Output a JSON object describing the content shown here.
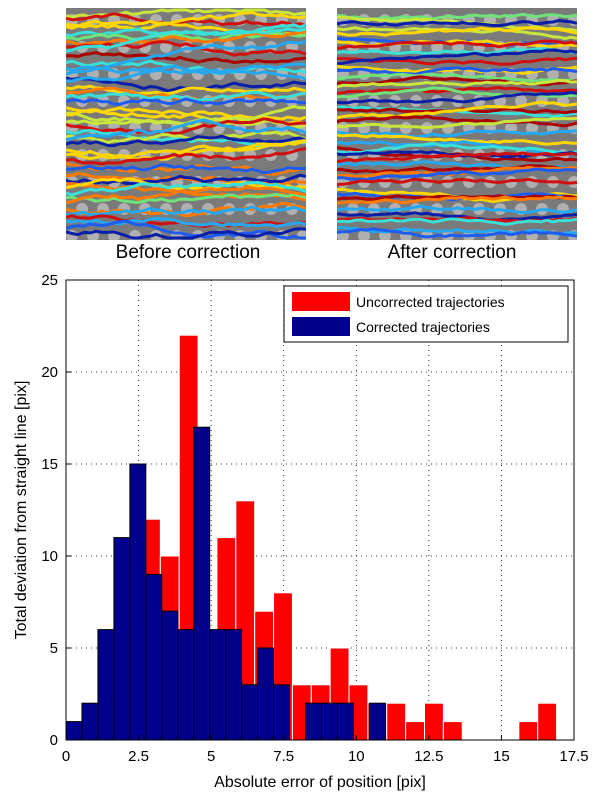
{
  "panels": [
    {
      "caption": "Before correction",
      "icon": "trajectory-overlay-image"
    },
    {
      "caption": "After correction",
      "icon": "trajectory-overlay-image"
    }
  ],
  "colors": {
    "uncorrected": "#ff0000",
    "corrected": "#00008c",
    "trajectory_palette": [
      "#aa0000",
      "#d01010",
      "#ff7a00",
      "#ffd700",
      "#c8e63c",
      "#6fe27a",
      "#38e0d8",
      "#25a8f0",
      "#1e5cf0",
      "#0a1ea8"
    ]
  },
  "chart_data": {
    "type": "bar",
    "xlabel": "Absolute error of position [pix]",
    "ylabel": "Total deviation from straight line [pix]",
    "xlim": [
      0,
      17.5
    ],
    "ylim": [
      0,
      25
    ],
    "xticks": [
      "0",
      "2.5",
      "5",
      "7.5",
      "10",
      "12.5",
      "15",
      "17.5"
    ],
    "yticks": [
      "0",
      "5",
      "10",
      "15",
      "20",
      "25"
    ],
    "grid": true,
    "legend_position": "top-right",
    "bin_width": 0.65,
    "series": [
      {
        "name": "Uncorrected trajectories",
        "bins": [
          {
            "x": 2.6,
            "value": 12
          },
          {
            "x": 3.25,
            "value": 10
          },
          {
            "x": 3.9,
            "value": 22
          },
          {
            "x": 4.55,
            "value": 6
          },
          {
            "x": 5.2,
            "value": 11
          },
          {
            "x": 5.85,
            "value": 13
          },
          {
            "x": 6.5,
            "value": 7
          },
          {
            "x": 7.15,
            "value": 8
          },
          {
            "x": 7.8,
            "value": 3
          },
          {
            "x": 8.45,
            "value": 3
          },
          {
            "x": 9.1,
            "value": 5
          },
          {
            "x": 9.75,
            "value": 3
          },
          {
            "x": 10.4,
            "value": 2
          },
          {
            "x": 11.05,
            "value": 2
          },
          {
            "x": 11.7,
            "value": 1
          },
          {
            "x": 12.35,
            "value": 2
          },
          {
            "x": 13.0,
            "value": 1
          },
          {
            "x": 15.6,
            "value": 1
          },
          {
            "x": 16.25,
            "value": 2
          }
        ]
      },
      {
        "name": "Corrected trajectories",
        "bins": [
          {
            "x": 0.0,
            "value": 1
          },
          {
            "x": 0.55,
            "value": 2
          },
          {
            "x": 1.1,
            "value": 6
          },
          {
            "x": 1.65,
            "value": 11
          },
          {
            "x": 2.2,
            "value": 15
          },
          {
            "x": 2.75,
            "value": 9
          },
          {
            "x": 3.3,
            "value": 7
          },
          {
            "x": 3.85,
            "value": 6
          },
          {
            "x": 4.4,
            "value": 17
          },
          {
            "x": 4.95,
            "value": 6
          },
          {
            "x": 5.5,
            "value": 6
          },
          {
            "x": 6.05,
            "value": 3
          },
          {
            "x": 6.6,
            "value": 5
          },
          {
            "x": 7.15,
            "value": 3
          },
          {
            "x": 7.7,
            "value": 0
          },
          {
            "x": 8.25,
            "value": 2
          },
          {
            "x": 8.8,
            "value": 2
          },
          {
            "x": 9.35,
            "value": 2
          },
          {
            "x": 9.9,
            "value": 0
          },
          {
            "x": 10.45,
            "value": 2
          }
        ],
        "bin_width": 0.55
      }
    ]
  }
}
